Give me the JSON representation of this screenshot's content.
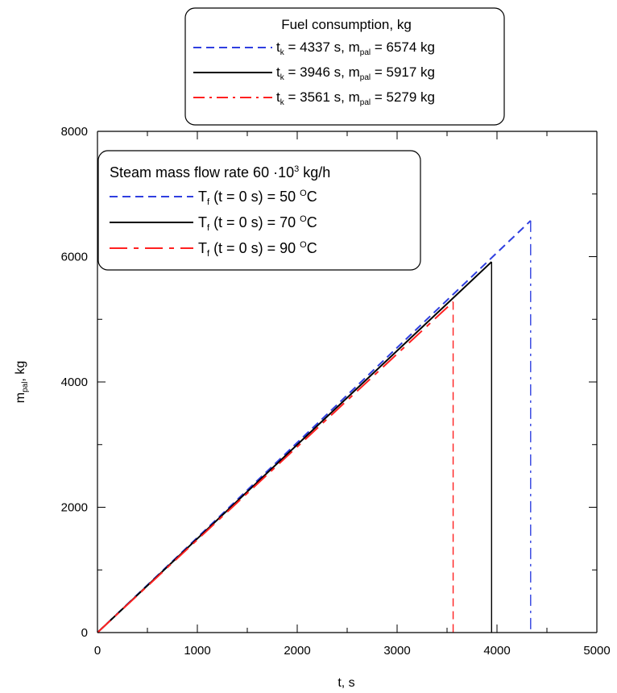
{
  "chart_data": {
    "type": "line",
    "xlabel": "t, s",
    "ylabel_main": "m",
    "ylabel_sub": "pal",
    "ylabel_unit": ", kg",
    "xlim": [
      0,
      5000
    ],
    "ylim": [
      0,
      8000
    ],
    "x_ticks": [
      0,
      1000,
      2000,
      3000,
      4000,
      5000
    ],
    "y_ticks": [
      0,
      2000,
      4000,
      6000,
      8000
    ],
    "grid": false,
    "series": [
      {
        "name": "Tf (t = 0 s) = 50 °C",
        "color": "#2f3fe0",
        "style": "dash",
        "x": [
          0,
          4337
        ],
        "y": [
          0,
          6574
        ],
        "end_x": 4337,
        "end_style": "dashdot"
      },
      {
        "name": "Tf (t = 0 s) = 70 °C",
        "color": "#000000",
        "style": "solid",
        "x": [
          0,
          3946
        ],
        "y": [
          0,
          5917
        ],
        "end_x": 3946,
        "end_style": "solid"
      },
      {
        "name": "Tf (t = 0 s) = 90 °C",
        "color": "#ff2020",
        "style": "longdash",
        "x": [
          0,
          3561
        ],
        "y": [
          0,
          5279
        ],
        "end_x": 3561,
        "end_style": "dash"
      }
    ],
    "legend_fuel": {
      "title": "Fuel consumption, kg",
      "entries": [
        {
          "t": "4337",
          "m": "6574",
          "color": "#2f3fe0",
          "style": "dash"
        },
        {
          "t": "3946",
          "m": "5917",
          "color": "#000000",
          "style": "solid"
        },
        {
          "t": "3561",
          "m": "5279",
          "color": "#ff2020",
          "style": "dashdot"
        }
      ],
      "t_prefix": "t",
      "t_sub": "k",
      "t_mid": " = ",
      "t_unit": " s, m",
      "m_sub": "pal",
      "m_mid": " = ",
      "m_unit": " kg"
    },
    "legend_steam": {
      "title_pre": "Steam mass flow rate 60 ·10",
      "title_sup": "3",
      "title_post": " kg/h",
      "entries": [
        {
          "temp": "50",
          "color": "#2f3fe0",
          "style": "dash"
        },
        {
          "temp": "70",
          "color": "#000000",
          "style": "solid"
        },
        {
          "temp": "90",
          "color": "#ff2020",
          "style": "longdash"
        }
      ],
      "label_pre": "T",
      "label_sub": "f",
      "label_mid": " (t = 0 s) = ",
      "label_unit_sup": "O",
      "label_unit": "C"
    }
  }
}
